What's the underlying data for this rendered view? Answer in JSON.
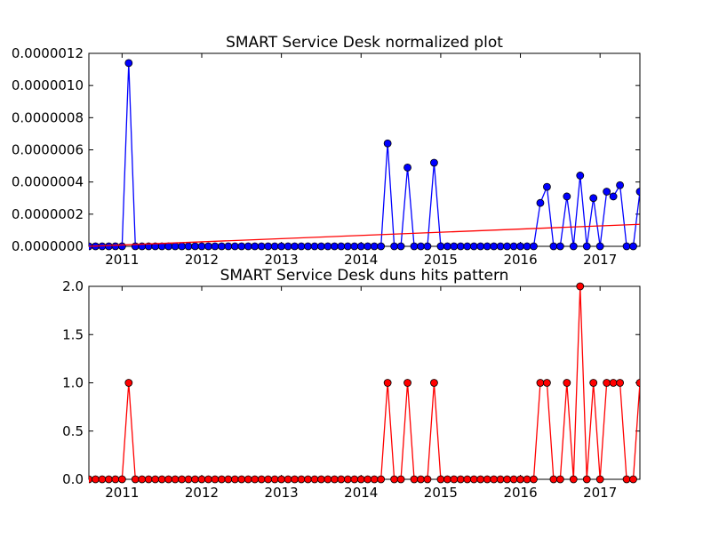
{
  "chart_data": [
    {
      "type": "line",
      "title": "SMART Service Desk normalized plot",
      "xlabel": "",
      "ylabel": "",
      "xlim": [
        "2010-08",
        "2017-07"
      ],
      "ylim": [
        0,
        1.2e-06
      ],
      "x_tick_labels": [
        "2011",
        "2012",
        "2013",
        "2014",
        "2015",
        "2016",
        "2017"
      ],
      "y_tick_labels": [
        "0.0000000",
        "0.0000002",
        "0.0000004",
        "0.0000006",
        "0.0000008",
        "0.0000010",
        "0.0000012"
      ],
      "y_ticks": [
        0,
        2e-07,
        4e-07,
        6e-07,
        8e-07,
        1e-06,
        1.2e-06
      ],
      "series": [
        {
          "color": "#0000ff",
          "marker": "circle",
          "points": [
            [
              "2010-08",
              0
            ],
            [
              "2010-09",
              0
            ],
            [
              "2010-10",
              0
            ],
            [
              "2010-11",
              0
            ],
            [
              "2010-12",
              0
            ],
            [
              "2011-01",
              0
            ],
            [
              "2011-02",
              1.14e-06
            ],
            [
              "2011-03",
              0
            ],
            [
              "2011-04",
              0
            ],
            [
              "2011-05",
              0
            ],
            [
              "2011-06",
              0
            ],
            [
              "2011-07",
              0
            ],
            [
              "2011-08",
              0
            ],
            [
              "2011-09",
              0
            ],
            [
              "2011-10",
              0
            ],
            [
              "2011-11",
              0
            ],
            [
              "2011-12",
              0
            ],
            [
              "2012-01",
              0
            ],
            [
              "2012-02",
              0
            ],
            [
              "2012-03",
              0
            ],
            [
              "2012-04",
              0
            ],
            [
              "2012-05",
              0
            ],
            [
              "2012-06",
              0
            ],
            [
              "2012-07",
              0
            ],
            [
              "2012-08",
              0
            ],
            [
              "2012-09",
              0
            ],
            [
              "2012-10",
              0
            ],
            [
              "2012-11",
              0
            ],
            [
              "2012-12",
              0
            ],
            [
              "2013-01",
              0
            ],
            [
              "2013-02",
              0
            ],
            [
              "2013-03",
              0
            ],
            [
              "2013-04",
              0
            ],
            [
              "2013-05",
              0
            ],
            [
              "2013-06",
              0
            ],
            [
              "2013-07",
              0
            ],
            [
              "2013-08",
              0
            ],
            [
              "2013-09",
              0
            ],
            [
              "2013-10",
              0
            ],
            [
              "2013-11",
              0
            ],
            [
              "2013-12",
              0
            ],
            [
              "2014-01",
              0
            ],
            [
              "2014-02",
              0
            ],
            [
              "2014-03",
              0
            ],
            [
              "2014-04",
              0
            ],
            [
              "2014-05",
              6.4e-07
            ],
            [
              "2014-06",
              0
            ],
            [
              "2014-07",
              0
            ],
            [
              "2014-08",
              4.9e-07
            ],
            [
              "2014-09",
              0
            ],
            [
              "2014-10",
              0
            ],
            [
              "2014-11",
              0
            ],
            [
              "2014-12",
              5.2e-07
            ],
            [
              "2015-01",
              0
            ],
            [
              "2015-02",
              0
            ],
            [
              "2015-03",
              0
            ],
            [
              "2015-04",
              0
            ],
            [
              "2015-05",
              0
            ],
            [
              "2015-06",
              0
            ],
            [
              "2015-07",
              0
            ],
            [
              "2015-08",
              0
            ],
            [
              "2015-09",
              0
            ],
            [
              "2015-10",
              0
            ],
            [
              "2015-11",
              0
            ],
            [
              "2015-12",
              0
            ],
            [
              "2016-01",
              0
            ],
            [
              "2016-02",
              0
            ],
            [
              "2016-03",
              0
            ],
            [
              "2016-04",
              2.7e-07
            ],
            [
              "2016-05",
              3.7e-07
            ],
            [
              "2016-06",
              0
            ],
            [
              "2016-07",
              0
            ],
            [
              "2016-08",
              3.1e-07
            ],
            [
              "2016-09",
              0
            ],
            [
              "2016-10",
              4.4e-07
            ],
            [
              "2016-11",
              0
            ],
            [
              "2016-12",
              3e-07
            ],
            [
              "2017-01",
              0
            ],
            [
              "2017-02",
              3.4e-07
            ],
            [
              "2017-03",
              3.1e-07
            ],
            [
              "2017-04",
              3.8e-07
            ],
            [
              "2017-05",
              0
            ],
            [
              "2017-06",
              0
            ],
            [
              "2017-07",
              3.4e-07
            ]
          ]
        },
        {
          "color": "#ff0000",
          "marker": "none",
          "points": [
            [
              "2010-08",
              0
            ],
            [
              "2017-07",
              1.37e-07
            ]
          ]
        }
      ]
    },
    {
      "type": "line",
      "title": "SMART Service Desk duns hits pattern",
      "xlabel": "",
      "ylabel": "",
      "xlim": [
        "2010-08",
        "2017-07"
      ],
      "ylim": [
        0,
        2.0
      ],
      "x_tick_labels": [
        "2011",
        "2012",
        "2013",
        "2014",
        "2015",
        "2016",
        "2017"
      ],
      "y_tick_labels": [
        "0.0",
        "0.5",
        "1.0",
        "1.5",
        "2.0"
      ],
      "y_ticks": [
        0,
        0.5,
        1.0,
        1.5,
        2.0
      ],
      "series": [
        {
          "color": "#ff0000",
          "marker": "circle",
          "points": [
            [
              "2010-08",
              0
            ],
            [
              "2010-09",
              0
            ],
            [
              "2010-10",
              0
            ],
            [
              "2010-11",
              0
            ],
            [
              "2010-12",
              0
            ],
            [
              "2011-01",
              0
            ],
            [
              "2011-02",
              1
            ],
            [
              "2011-03",
              0
            ],
            [
              "2011-04",
              0
            ],
            [
              "2011-05",
              0
            ],
            [
              "2011-06",
              0
            ],
            [
              "2011-07",
              0
            ],
            [
              "2011-08",
              0
            ],
            [
              "2011-09",
              0
            ],
            [
              "2011-10",
              0
            ],
            [
              "2011-11",
              0
            ],
            [
              "2011-12",
              0
            ],
            [
              "2012-01",
              0
            ],
            [
              "2012-02",
              0
            ],
            [
              "2012-03",
              0
            ],
            [
              "2012-04",
              0
            ],
            [
              "2012-05",
              0
            ],
            [
              "2012-06",
              0
            ],
            [
              "2012-07",
              0
            ],
            [
              "2012-08",
              0
            ],
            [
              "2012-09",
              0
            ],
            [
              "2012-10",
              0
            ],
            [
              "2012-11",
              0
            ],
            [
              "2012-12",
              0
            ],
            [
              "2013-01",
              0
            ],
            [
              "2013-02",
              0
            ],
            [
              "2013-03",
              0
            ],
            [
              "2013-04",
              0
            ],
            [
              "2013-05",
              0
            ],
            [
              "2013-06",
              0
            ],
            [
              "2013-07",
              0
            ],
            [
              "2013-08",
              0
            ],
            [
              "2013-09",
              0
            ],
            [
              "2013-10",
              0
            ],
            [
              "2013-11",
              0
            ],
            [
              "2013-12",
              0
            ],
            [
              "2014-01",
              0
            ],
            [
              "2014-02",
              0
            ],
            [
              "2014-03",
              0
            ],
            [
              "2014-04",
              0
            ],
            [
              "2014-05",
              1
            ],
            [
              "2014-06",
              0
            ],
            [
              "2014-07",
              0
            ],
            [
              "2014-08",
              1
            ],
            [
              "2014-09",
              0
            ],
            [
              "2014-10",
              0
            ],
            [
              "2014-11",
              0
            ],
            [
              "2014-12",
              1
            ],
            [
              "2015-01",
              0
            ],
            [
              "2015-02",
              0
            ],
            [
              "2015-03",
              0
            ],
            [
              "2015-04",
              0
            ],
            [
              "2015-05",
              0
            ],
            [
              "2015-06",
              0
            ],
            [
              "2015-07",
              0
            ],
            [
              "2015-08",
              0
            ],
            [
              "2015-09",
              0
            ],
            [
              "2015-10",
              0
            ],
            [
              "2015-11",
              0
            ],
            [
              "2015-12",
              0
            ],
            [
              "2016-01",
              0
            ],
            [
              "2016-02",
              0
            ],
            [
              "2016-03",
              0
            ],
            [
              "2016-04",
              1
            ],
            [
              "2016-05",
              1
            ],
            [
              "2016-06",
              0
            ],
            [
              "2016-07",
              0
            ],
            [
              "2016-08",
              1
            ],
            [
              "2016-09",
              0
            ],
            [
              "2016-10",
              2
            ],
            [
              "2016-11",
              0
            ],
            [
              "2016-12",
              1
            ],
            [
              "2017-01",
              0
            ],
            [
              "2017-02",
              1
            ],
            [
              "2017-03",
              1
            ],
            [
              "2017-04",
              1
            ],
            [
              "2017-05",
              0
            ],
            [
              "2017-06",
              0
            ],
            [
              "2017-07",
              1
            ]
          ]
        }
      ]
    }
  ]
}
